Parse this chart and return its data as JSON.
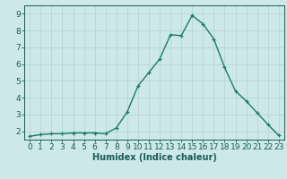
{
  "x": [
    0,
    1,
    2,
    3,
    4,
    5,
    6,
    7,
    8,
    9,
    10,
    11,
    12,
    13,
    14,
    15,
    16,
    17,
    18,
    19,
    20,
    21,
    22,
    23
  ],
  "y": [
    1.7,
    1.8,
    1.85,
    1.85,
    1.9,
    1.9,
    1.9,
    1.85,
    2.2,
    3.15,
    4.7,
    5.5,
    6.3,
    7.75,
    7.7,
    8.9,
    8.4,
    7.5,
    5.8,
    4.4,
    3.8,
    3.1,
    2.4,
    1.75
  ],
  "line_color": "#1a7a6a",
  "marker": "+",
  "marker_size": 3.5,
  "marker_linewidth": 0.9,
  "bg_color": "#cce8e8",
  "grid_color": "#b8d4d4",
  "xlabel": "Humidex (Indice chaleur)",
  "xlim": [
    -0.5,
    23.5
  ],
  "ylim": [
    1.5,
    9.5
  ],
  "yticks": [
    2,
    3,
    4,
    5,
    6,
    7,
    8,
    9
  ],
  "xticks": [
    0,
    1,
    2,
    3,
    4,
    5,
    6,
    7,
    8,
    9,
    10,
    11,
    12,
    13,
    14,
    15,
    16,
    17,
    18,
    19,
    20,
    21,
    22,
    23
  ],
  "tick_color": "#1a5a5a",
  "label_fontsize": 6.5,
  "xlabel_fontsize": 7.0,
  "axis_color": "#1a5a5a",
  "line_width": 1.0
}
